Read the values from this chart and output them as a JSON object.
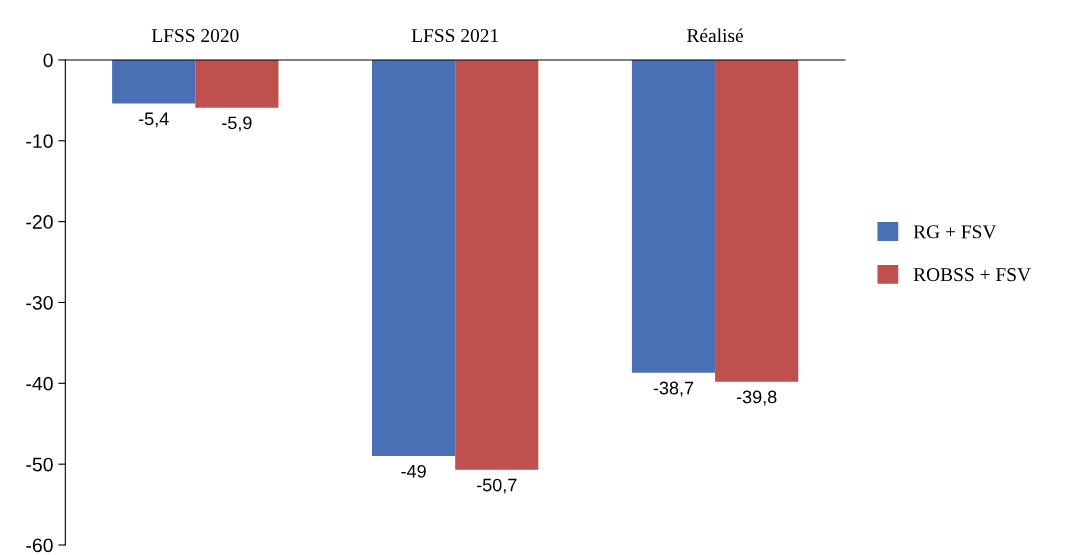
{
  "chart_data": {
    "type": "bar",
    "categories": [
      "LFSS 2020",
      "LFSS 2021",
      "Réalisé"
    ],
    "series": [
      {
        "name": "RG + FSV",
        "color": "#4a6fb5",
        "values": [
          -5.4,
          -49,
          -38.7
        ],
        "value_labels": [
          "-5,4",
          "-49",
          "-38,7"
        ]
      },
      {
        "name": "ROBSS + FSV",
        "color": "#c0504d",
        "values": [
          -5.9,
          -50.7,
          -39.8
        ],
        "value_labels": [
          "-5,9",
          "-50,7",
          "-39,8"
        ]
      }
    ],
    "ylim": [
      -60,
      0
    ],
    "yticks": [
      0,
      -10,
      -20,
      -30,
      -40,
      -50,
      -60
    ],
    "grid": false,
    "legend": "right"
  }
}
